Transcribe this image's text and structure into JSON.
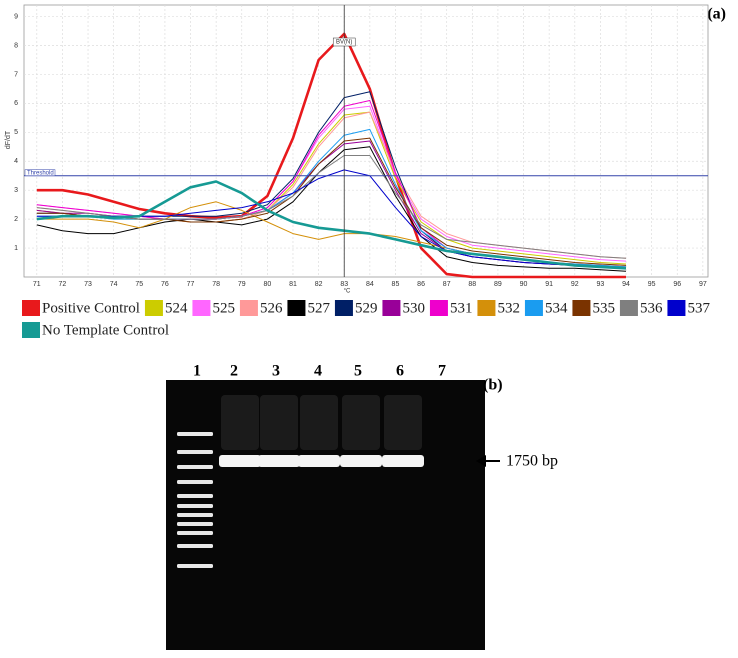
{
  "chart_data": {
    "type": "line",
    "panel_label": "(a)",
    "y_label": "dF/dT",
    "x_label": "°C",
    "x": [
      71,
      72,
      73,
      74,
      75,
      76,
      77,
      78,
      79,
      80,
      81,
      82,
      83,
      84,
      85,
      86,
      87,
      88,
      89,
      90,
      91,
      92,
      93,
      94
    ],
    "xlim": [
      70.5,
      97.2
    ],
    "ylim": [
      0,
      9.4
    ],
    "xticks": [
      71,
      72,
      73,
      74,
      75,
      76,
      77,
      78,
      79,
      80,
      81,
      82,
      83,
      84,
      85,
      86,
      87,
      88,
      89,
      90,
      91,
      92,
      93,
      94,
      95,
      96,
      97
    ],
    "yticks": [
      1,
      2,
      3,
      4,
      5,
      6,
      7,
      8,
      9
    ],
    "grid": true,
    "threshold": 3.5,
    "threshold_label": "Threshold",
    "cursor_x": 83,
    "cursor_label": "BV(N)",
    "series": [
      {
        "name": "Positive Control",
        "color": "#e8191c",
        "values": [
          3.0,
          3.0,
          2.85,
          2.6,
          2.35,
          2.2,
          2.1,
          2.05,
          2.1,
          2.8,
          4.8,
          7.5,
          8.4,
          6.5,
          3.5,
          1.0,
          0.1,
          0,
          0,
          0,
          0,
          0,
          0,
          0
        ]
      },
      {
        "name": "524",
        "color": "#cccc00",
        "values": [
          2.3,
          2.2,
          2.1,
          2.0,
          2.0,
          2.0,
          1.9,
          1.9,
          2.0,
          2.3,
          3.2,
          4.6,
          5.6,
          5.7,
          3.4,
          1.9,
          1.3,
          1.0,
          0.9,
          0.8,
          0.7,
          0.6,
          0.5,
          0.45
        ]
      },
      {
        "name": "525",
        "color": "#ff66ff",
        "values": [
          2.5,
          2.4,
          2.3,
          2.2,
          2.1,
          2.0,
          2.0,
          2.0,
          2.1,
          2.4,
          3.3,
          4.8,
          5.8,
          5.9,
          3.5,
          2.0,
          1.4,
          1.1,
          1.0,
          0.9,
          0.8,
          0.7,
          0.6,
          0.55
        ]
      },
      {
        "name": "526",
        "color": "#ff9999",
        "values": [
          2.4,
          2.3,
          2.2,
          2.1,
          2.1,
          2.0,
          1.9,
          1.9,
          2.0,
          2.3,
          3.1,
          4.5,
          5.5,
          5.7,
          3.6,
          2.1,
          1.5,
          1.2,
          1.1,
          1.0,
          0.9,
          0.8,
          0.7,
          0.65
        ]
      },
      {
        "name": "527",
        "color": "#000000",
        "values": [
          1.8,
          1.6,
          1.5,
          1.5,
          1.7,
          1.9,
          2.0,
          1.9,
          1.8,
          2.0,
          2.6,
          3.6,
          4.4,
          4.5,
          2.8,
          1.4,
          0.7,
          0.5,
          0.4,
          0.35,
          0.3,
          0.3,
          0.25,
          0.2
        ]
      },
      {
        "name": "529",
        "color": "#001f66",
        "values": [
          2.2,
          2.2,
          2.1,
          2.1,
          2.1,
          2.1,
          2.1,
          2.1,
          2.2,
          2.5,
          3.4,
          5.0,
          6.2,
          6.4,
          3.8,
          1.6,
          0.9,
          0.7,
          0.6,
          0.5,
          0.45,
          0.4,
          0.35,
          0.3
        ]
      },
      {
        "name": "530",
        "color": "#990099",
        "values": [
          2.3,
          2.2,
          2.2,
          2.1,
          2.0,
          2.0,
          2.0,
          2.0,
          2.1,
          2.3,
          2.9,
          3.9,
          4.6,
          4.7,
          3.0,
          1.5,
          0.9,
          0.7,
          0.6,
          0.5,
          0.45,
          0.4,
          0.35,
          0.3
        ]
      },
      {
        "name": "531",
        "color": "#ee00cc",
        "values": [
          2.5,
          2.4,
          2.3,
          2.2,
          2.1,
          2.0,
          2.0,
          2.0,
          2.1,
          2.4,
          3.3,
          4.9,
          5.9,
          6.1,
          3.6,
          1.7,
          1.0,
          0.8,
          0.7,
          0.6,
          0.5,
          0.45,
          0.4,
          0.35
        ]
      },
      {
        "name": "532",
        "color": "#d4900a",
        "values": [
          2.0,
          2.0,
          2.0,
          1.9,
          1.7,
          2.0,
          2.4,
          2.6,
          2.3,
          1.9,
          1.5,
          1.3,
          1.5,
          1.5,
          1.4,
          1.2,
          1.0,
          0.8,
          0.7,
          0.6,
          0.5,
          0.45,
          0.4,
          0.35
        ]
      },
      {
        "name": "534",
        "color": "#1a9cf0",
        "values": [
          2.1,
          2.1,
          2.1,
          2.0,
          2.0,
          2.0,
          2.0,
          2.0,
          2.1,
          2.3,
          2.9,
          4.0,
          4.9,
          5.1,
          3.2,
          1.6,
          1.0,
          0.8,
          0.7,
          0.6,
          0.5,
          0.45,
          0.4,
          0.35
        ]
      },
      {
        "name": "535",
        "color": "#7a3300",
        "values": [
          2.2,
          2.2,
          2.1,
          2.1,
          2.0,
          2.0,
          1.9,
          1.9,
          2.0,
          2.2,
          2.8,
          3.9,
          4.7,
          4.8,
          3.1,
          1.7,
          1.1,
          0.9,
          0.8,
          0.7,
          0.6,
          0.5,
          0.45,
          0.4
        ]
      },
      {
        "name": "536",
        "color": "#7f7f7f",
        "values": [
          2.4,
          2.3,
          2.2,
          2.1,
          2.0,
          2.0,
          2.0,
          2.0,
          2.1,
          2.3,
          2.8,
          3.6,
          4.2,
          4.2,
          2.9,
          1.8,
          1.3,
          1.2,
          1.1,
          1.0,
          0.9,
          0.8,
          0.7,
          0.65
        ]
      },
      {
        "name": "537",
        "color": "#0000cc",
        "values": [
          2.1,
          2.1,
          2.1,
          2.1,
          2.1,
          2.1,
          2.2,
          2.3,
          2.4,
          2.6,
          2.9,
          3.4,
          3.7,
          3.5,
          2.4,
          1.4,
          0.9,
          0.7,
          0.6,
          0.5,
          0.45,
          0.4,
          0.35,
          0.3
        ]
      },
      {
        "name": "No Template Control",
        "color": "#169a94",
        "values": [
          2.0,
          2.1,
          2.1,
          2.05,
          2.1,
          2.6,
          3.1,
          3.3,
          2.9,
          2.3,
          1.9,
          1.7,
          1.6,
          1.5,
          1.3,
          1.1,
          0.9,
          0.8,
          0.7,
          0.6,
          0.5,
          0.4,
          0.35,
          0.3
        ]
      }
    ]
  },
  "gel": {
    "panel_label": "(b)",
    "lanes": [
      "1",
      "2",
      "3",
      "4",
      "5",
      "6",
      "7"
    ],
    "band_label": "1750 bp"
  }
}
